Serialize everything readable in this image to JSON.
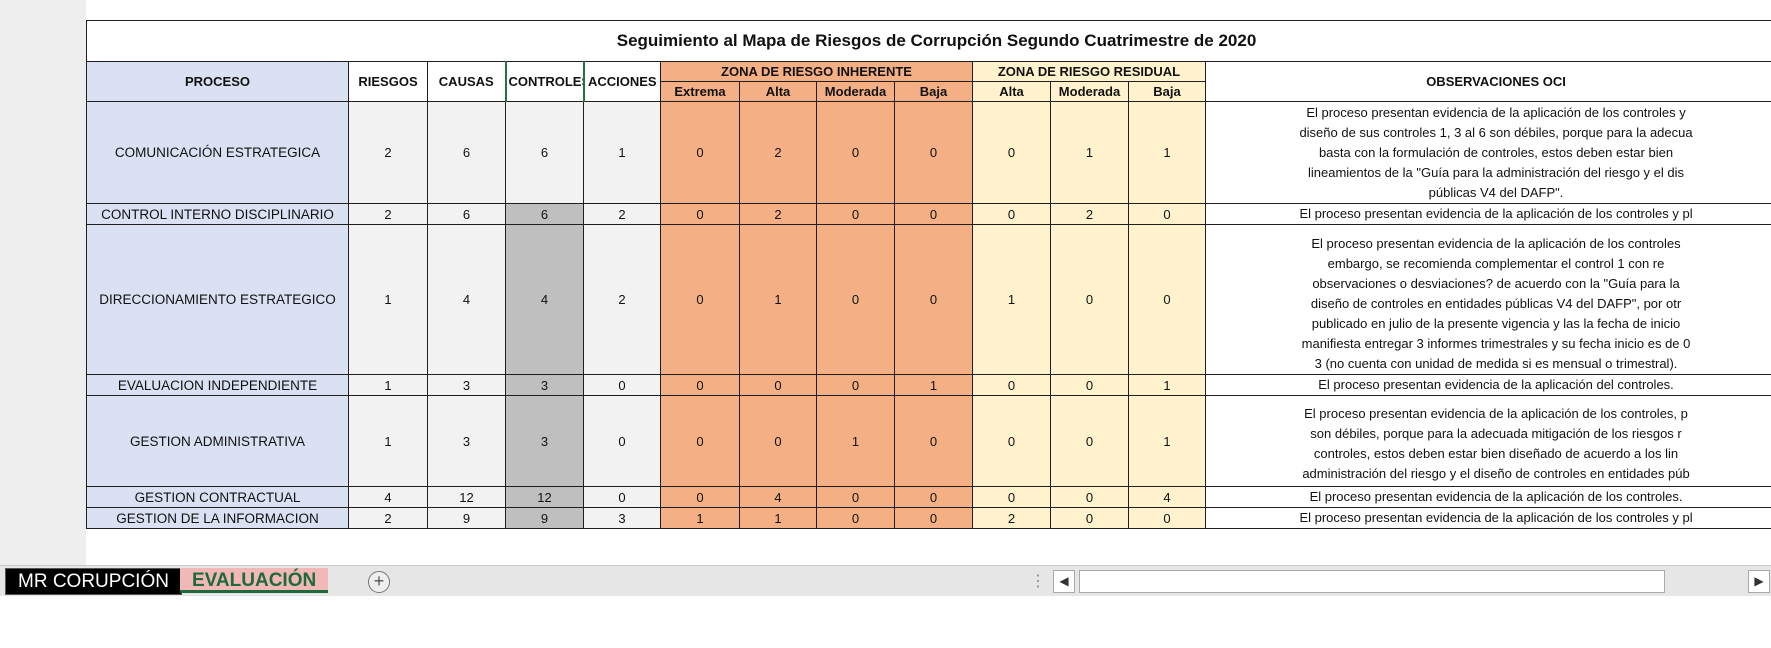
{
  "title": "Seguimiento al Mapa de Riesgos de Corrupción Segundo Cuatrimestre de 2020",
  "headers": {
    "proceso": "PROCESO",
    "riesgos": "RIESGOS",
    "causas": "CAUSAS",
    "controles": "CONTROLES",
    "acciones": "ACCIONES",
    "zona_inherente": "ZONA DE RIESGO INHERENTE",
    "zona_residual": "ZONA DE RIESGO RESIDUAL",
    "observaciones": "OBSERVACIONES OCI",
    "inherente_sub": [
      "Extrema",
      "Alta",
      "Moderada",
      "Baja"
    ],
    "residual_sub": [
      "Alta",
      "Moderada",
      "Baja"
    ]
  },
  "rows": [
    {
      "proceso": "COMUNICACIÓN ESTRATEGICA",
      "riesgos": "2",
      "causas": "6",
      "controles": "6",
      "acciones": "1",
      "inherente": [
        "0",
        "2",
        "0",
        "0"
      ],
      "residual": [
        "0",
        "1",
        "1"
      ],
      "obs_lines": [
        "El proceso presentan evidencia de la aplicación de los controles y",
        "diseño de sus controles 1, 3 al 6 son débiles, porque para la adecua",
        "basta con la formulación de controles, estos deben estar bien",
        "lineamientos de la \"Guía para la administración del riesgo y el dis",
        "públicas V4 del DAFP\"."
      ]
    },
    {
      "proceso": "CONTROL INTERNO DISCIPLINARIO",
      "riesgos": "2",
      "causas": "6",
      "controles": "6",
      "acciones": "2",
      "inherente": [
        "0",
        "2",
        "0",
        "0"
      ],
      "residual": [
        "0",
        "2",
        "0"
      ],
      "obs": "El proceso presentan evidencia de la aplicación de los controles y pl"
    },
    {
      "proceso": "DIRECCIONAMIENTO ESTRATEGICO",
      "riesgos": "1",
      "causas": "4",
      "controles": "4",
      "acciones": "2",
      "inherente": [
        "0",
        "1",
        "0",
        "0"
      ],
      "residual": [
        "1",
        "0",
        "0"
      ],
      "obs_lines": [
        "El proceso presentan evidencia de la aplicación de los controles",
        "embargo, se recomienda complementar el control 1 con re",
        "observaciones o desviaciones? de acuerdo con la \"Guía para la",
        "diseño de controles en entidades públicas V4 del DAFP\", por otr",
        "publicado en julio de la presente vigencia y las la fecha de inicio",
        "manifiesta entregar 3 informes trimestrales y su fecha inicio es de 0",
        "3 (no cuenta con unidad de medida si es mensual o trimestral)."
      ]
    },
    {
      "proceso": "EVALUACION INDEPENDIENTE",
      "riesgos": "1",
      "causas": "3",
      "controles": "3",
      "acciones": "0",
      "inherente": [
        "0",
        "0",
        "0",
        "1"
      ],
      "residual": [
        "0",
        "0",
        "1"
      ],
      "obs": "El proceso presentan evidencia de la aplicación del controles."
    },
    {
      "proceso": "GESTION ADMINISTRATIVA",
      "riesgos": "1",
      "causas": "3",
      "controles": "3",
      "acciones": "0",
      "inherente": [
        "0",
        "0",
        "1",
        "0"
      ],
      "residual": [
        "0",
        "0",
        "1"
      ],
      "obs_lines": [
        "El proceso presentan evidencia de la aplicación de los controles, p",
        "son débiles, porque para la adecuada mitigación de los riesgos r",
        "controles, estos deben estar bien diseñado de acuerdo a los lin",
        "administración del riesgo y el diseño de controles en entidades púb"
      ]
    },
    {
      "proceso": "GESTION CONTRACTUAL",
      "riesgos": "4",
      "causas": "12",
      "controles": "12",
      "acciones": "0",
      "inherente": [
        "0",
        "4",
        "0",
        "0"
      ],
      "residual": [
        "0",
        "0",
        "4"
      ],
      "obs": "El proceso presentan evidencia de la aplicación de los controles."
    },
    {
      "proceso": "GESTION DE LA INFORMACION",
      "riesgos": "2",
      "causas": "9",
      "controles": "9",
      "acciones": "3",
      "inherente": [
        "1",
        "1",
        "0",
        "0"
      ],
      "residual": [
        "2",
        "0",
        "0"
      ],
      "obs": "El proceso presentan evidencia de la aplicación de los controles y pl"
    }
  ],
  "sheet_tabs": [
    "MR CORUPCIÓN",
    "EVALUACIÓN"
  ],
  "active_tab": "EVALUACIÓN",
  "icons": {
    "add_sheet": "plus-circle-icon",
    "scroll_left": "triangle-left-icon",
    "scroll_right": "triangle-right-icon"
  },
  "colors": {
    "proceso_fill": "#d9e1f2",
    "inherente_fill": "#f4b084",
    "residual_fill": "#fff2cc",
    "controles_selected": "#bfbfbf",
    "active_tab_text": "#1e6b3a"
  }
}
